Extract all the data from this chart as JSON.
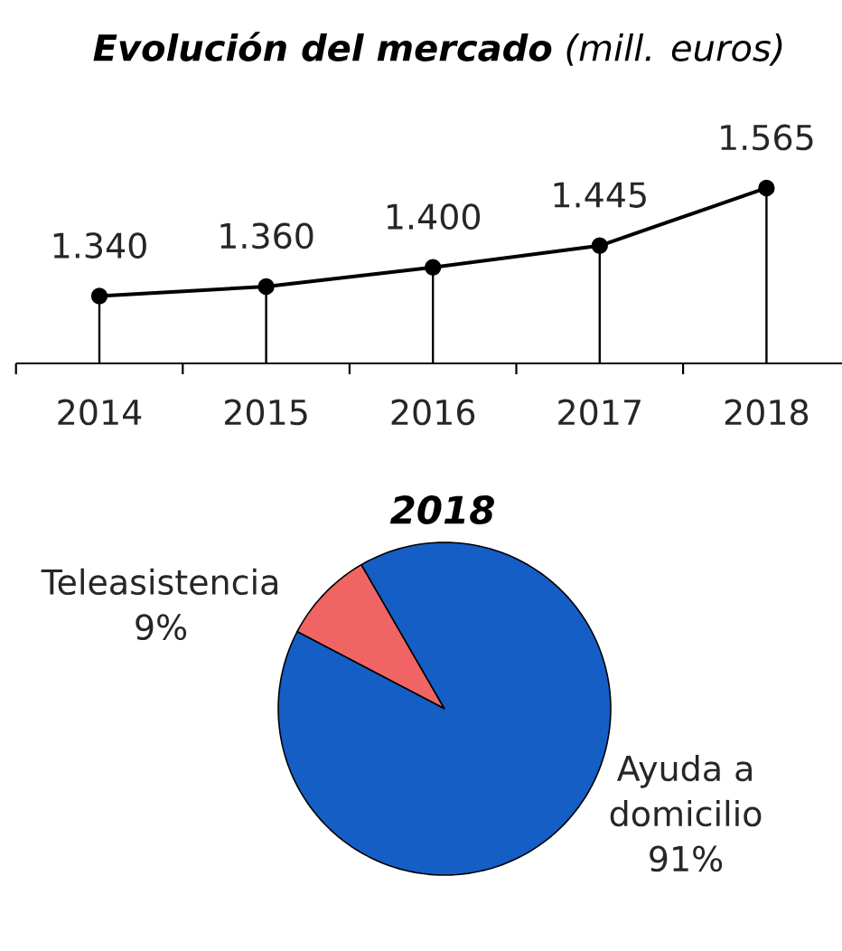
{
  "chart_data": [
    {
      "type": "line",
      "title": "**Evolución del mercado** (mill. euros)",
      "categories": [
        "2014",
        "2015",
        "2016",
        "2017",
        "2018"
      ],
      "values": [
        1340,
        1360,
        1400,
        1445,
        1565
      ],
      "value_labels": [
        "1.340",
        "1.360",
        "1.400",
        "1.445",
        "1.565"
      ],
      "color": "#000000",
      "marker": "circle",
      "ylim": [
        1200,
        1565
      ],
      "tick_labels": "x"
    },
    {
      "type": "pie",
      "title": "2018",
      "categories": [
        "Teleasistencia",
        "Ayuda a domicilio"
      ],
      "values": [
        9,
        91
      ],
      "colors": [
        "#f06464",
        "#155ec5"
      ],
      "value_labels": [
        "9%",
        "91%"
      ]
    }
  ]
}
